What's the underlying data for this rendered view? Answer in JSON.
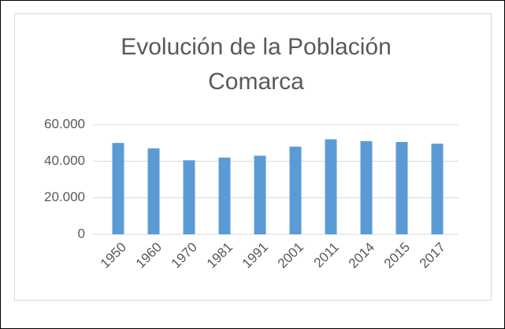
{
  "chart_data": {
    "type": "bar",
    "title": "Evolución de la Población Comarca",
    "categories": [
      "1950",
      "1960",
      "1970",
      "1981",
      "1991",
      "2001",
      "2011",
      "2014",
      "2015",
      "2017"
    ],
    "values": [
      50000,
      47000,
      40500,
      42000,
      43000,
      48000,
      52000,
      51000,
      50500,
      49600
    ],
    "color": "#5b9bd5",
    "ylim": [
      0,
      60000
    ],
    "yticks": [
      0,
      {
        "value": 20000,
        "label": "20.000"
      },
      {
        "value": 40000,
        "label": "40.000"
      },
      {
        "value": 60000,
        "label": "60.000"
      }
    ],
    "grid": true
  }
}
